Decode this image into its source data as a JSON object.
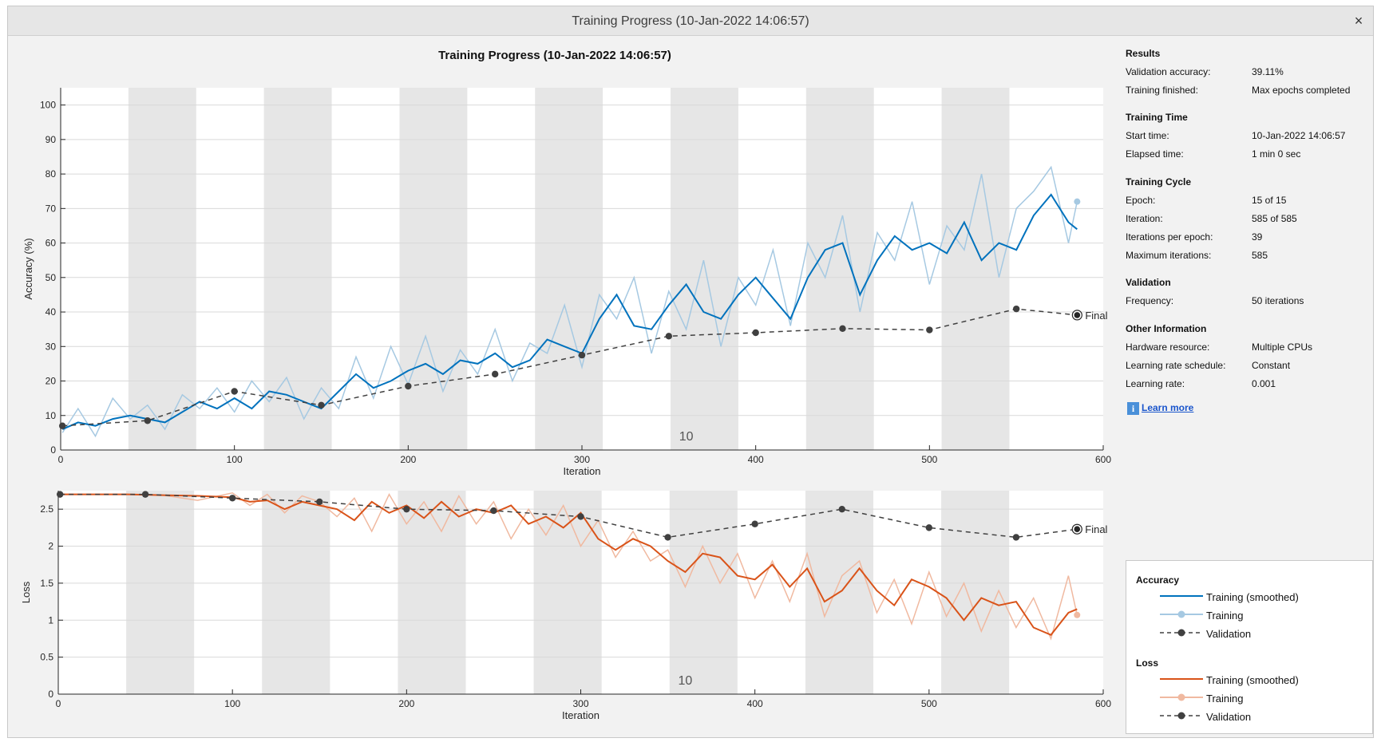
{
  "window": {
    "title": "Training Progress (10-Jan-2022 14:06:57)",
    "close_glyph": "×"
  },
  "plot_title": "Training Progress (10-Jan-2022 14:06:57)",
  "info": {
    "results": {
      "heading": "Results",
      "validation_accuracy_label": "Validation accuracy:",
      "validation_accuracy": "39.11%",
      "training_finished_label": "Training finished:",
      "training_finished": "Max epochs completed"
    },
    "time": {
      "heading": "Training Time",
      "start_label": "Start time:",
      "start": "10-Jan-2022 14:06:57",
      "elapsed_label": "Elapsed time:",
      "elapsed": "1 min 0 sec"
    },
    "cycle": {
      "heading": "Training Cycle",
      "epoch_label": "Epoch:",
      "epoch": "15 of 15",
      "iteration_label": "Iteration:",
      "iteration": "585 of 585",
      "ipe_label": "Iterations per epoch:",
      "ipe": "39",
      "max_label": "Maximum iterations:",
      "max": "585"
    },
    "validation": {
      "heading": "Validation",
      "frequency_label": "Frequency:",
      "frequency": "50 iterations"
    },
    "other": {
      "heading": "Other Information",
      "hardware_label": "Hardware resource:",
      "hardware": "Multiple CPUs",
      "lr_schedule_label": "Learning rate schedule:",
      "lr_schedule": "Constant",
      "lr_label": "Learning rate:",
      "lr": "0.001"
    },
    "learn_more": "Learn more",
    "info_glyph": "i"
  },
  "legend": {
    "accuracy_heading": "Accuracy",
    "loss_heading": "Loss",
    "training_smoothed": "Training (smoothed)",
    "training": "Training",
    "validation": "Validation"
  },
  "colors": {
    "acc_smoothed": "#0072bd",
    "acc_raw": "#a6c9e2",
    "loss_smoothed": "#d95319",
    "loss_raw": "#f0b9a0",
    "validation": "#404040",
    "epoch_band": "#e6e6e6"
  },
  "chart_data": [
    {
      "type": "line",
      "xlabel": "Iteration",
      "ylabel": "Accuracy (%)",
      "xlim": [
        0,
        600
      ],
      "ylim": [
        0,
        105
      ],
      "xticks": [
        0,
        100,
        200,
        300,
        400,
        500,
        600
      ],
      "yticks": [
        0,
        10,
        20,
        30,
        40,
        50,
        60,
        70,
        80,
        90,
        100
      ],
      "epoch_label": "10",
      "final_label": "Final",
      "grid": true,
      "series": [
        {
          "name": "Training (smoothed)",
          "x": [
            1,
            10,
            20,
            30,
            40,
            50,
            60,
            70,
            80,
            90,
            100,
            110,
            120,
            130,
            140,
            150,
            160,
            170,
            180,
            190,
            200,
            210,
            220,
            230,
            240,
            250,
            260,
            270,
            280,
            290,
            300,
            310,
            320,
            330,
            340,
            350,
            360,
            370,
            380,
            390,
            400,
            410,
            420,
            430,
            440,
            450,
            460,
            470,
            480,
            490,
            500,
            510,
            520,
            530,
            540,
            550,
            560,
            570,
            580,
            585
          ],
          "y": [
            6,
            8,
            7,
            9,
            10,
            9,
            8,
            11,
            14,
            12,
            15,
            12,
            17,
            16,
            14,
            12,
            17,
            22,
            18,
            20,
            23,
            25,
            22,
            26,
            25,
            28,
            24,
            26,
            32,
            30,
            28,
            38,
            45,
            36,
            35,
            42,
            48,
            40,
            38,
            45,
            50,
            44,
            38,
            50,
            58,
            60,
            45,
            55,
            62,
            58,
            60,
            57,
            66,
            55,
            60,
            58,
            68,
            74,
            66,
            64
          ]
        },
        {
          "name": "Training",
          "x": [
            1,
            10,
            20,
            30,
            40,
            50,
            60,
            70,
            80,
            90,
            100,
            110,
            120,
            130,
            140,
            150,
            160,
            170,
            180,
            190,
            200,
            210,
            220,
            230,
            240,
            250,
            260,
            270,
            280,
            290,
            300,
            310,
            320,
            330,
            340,
            350,
            360,
            370,
            380,
            390,
            400,
            410,
            420,
            430,
            440,
            450,
            460,
            470,
            480,
            490,
            500,
            510,
            520,
            530,
            540,
            550,
            560,
            570,
            580,
            585
          ],
          "y": [
            5,
            12,
            4,
            15,
            9,
            13,
            6,
            16,
            12,
            18,
            11,
            20,
            14,
            21,
            9,
            18,
            12,
            27,
            15,
            30,
            19,
            33,
            17,
            29,
            22,
            35,
            20,
            31,
            28,
            42,
            24,
            45,
            38,
            50,
            28,
            46,
            35,
            55,
            30,
            50,
            42,
            58,
            36,
            60,
            50,
            68,
            40,
            63,
            55,
            72,
            48,
            65,
            58,
            80,
            50,
            70,
            75,
            82,
            60,
            72
          ]
        },
        {
          "name": "Validation",
          "x": [
            1,
            50,
            100,
            150,
            200,
            250,
            300,
            350,
            400,
            450,
            500,
            550,
            585
          ],
          "y": [
            7,
            8.5,
            17,
            13,
            18.5,
            22,
            27.5,
            33,
            34,
            35.2,
            34.8,
            40.9,
            39.11
          ]
        }
      ]
    },
    {
      "type": "line",
      "xlabel": "Iteration",
      "ylabel": "Loss",
      "xlim": [
        0,
        600
      ],
      "ylim": [
        0,
        2.75
      ],
      "xticks": [
        0,
        100,
        200,
        300,
        400,
        500,
        600
      ],
      "yticks": [
        0,
        0.5,
        1,
        1.5,
        2,
        2.5
      ],
      "epoch_label": "10",
      "final_label": "Final",
      "grid": true,
      "series": [
        {
          "name": "Training (smoothed)",
          "x": [
            1,
            20,
            40,
            60,
            80,
            100,
            110,
            120,
            130,
            140,
            150,
            160,
            170,
            180,
            190,
            200,
            210,
            220,
            230,
            240,
            250,
            260,
            270,
            280,
            290,
            300,
            310,
            320,
            330,
            340,
            350,
            360,
            370,
            380,
            390,
            400,
            410,
            420,
            430,
            440,
            450,
            460,
            470,
            480,
            490,
            500,
            510,
            520,
            530,
            540,
            550,
            560,
            570,
            580,
            585
          ],
          "y": [
            2.7,
            2.7,
            2.7,
            2.69,
            2.68,
            2.66,
            2.6,
            2.62,
            2.5,
            2.6,
            2.55,
            2.5,
            2.35,
            2.6,
            2.45,
            2.55,
            2.38,
            2.6,
            2.4,
            2.5,
            2.45,
            2.55,
            2.3,
            2.4,
            2.25,
            2.45,
            2.1,
            1.95,
            2.1,
            2.0,
            1.8,
            1.65,
            1.9,
            1.85,
            1.6,
            1.55,
            1.75,
            1.45,
            1.7,
            1.25,
            1.4,
            1.7,
            1.4,
            1.2,
            1.55,
            1.45,
            1.3,
            1.0,
            1.3,
            1.2,
            1.25,
            0.9,
            0.8,
            1.1,
            1.15
          ]
        },
        {
          "name": "Training",
          "x": [
            1,
            20,
            40,
            60,
            80,
            100,
            110,
            120,
            130,
            140,
            150,
            160,
            170,
            180,
            190,
            200,
            210,
            220,
            230,
            240,
            250,
            260,
            270,
            280,
            290,
            300,
            310,
            320,
            330,
            340,
            350,
            360,
            370,
            380,
            390,
            400,
            410,
            420,
            430,
            440,
            450,
            460,
            470,
            480,
            490,
            500,
            510,
            520,
            530,
            540,
            550,
            560,
            570,
            580,
            585
          ],
          "y": [
            2.7,
            2.7,
            2.7,
            2.69,
            2.62,
            2.72,
            2.55,
            2.7,
            2.45,
            2.68,
            2.6,
            2.4,
            2.65,
            2.2,
            2.7,
            2.3,
            2.6,
            2.2,
            2.68,
            2.3,
            2.6,
            2.1,
            2.5,
            2.15,
            2.55,
            2.0,
            2.35,
            1.85,
            2.2,
            1.8,
            1.95,
            1.45,
            2.0,
            1.5,
            1.9,
            1.3,
            1.8,
            1.25,
            1.9,
            1.05,
            1.6,
            1.8,
            1.1,
            1.55,
            0.95,
            1.65,
            1.05,
            1.5,
            0.85,
            1.4,
            0.9,
            1.3,
            0.75,
            1.6,
            1.07
          ]
        },
        {
          "name": "Validation",
          "x": [
            1,
            50,
            100,
            150,
            200,
            250,
            300,
            350,
            400,
            450,
            500,
            550,
            585
          ],
          "y": [
            2.7,
            2.7,
            2.65,
            2.6,
            2.5,
            2.48,
            2.4,
            2.12,
            2.3,
            2.5,
            2.25,
            2.12,
            2.23
          ]
        }
      ]
    }
  ]
}
